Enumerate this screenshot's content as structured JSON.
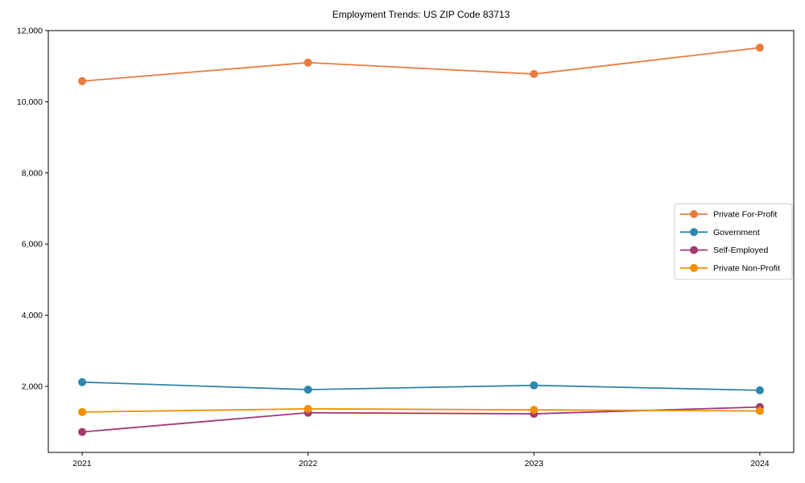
{
  "chart_data": {
    "type": "line",
    "title": "Employment Trends: US ZIP Code 83713",
    "x": [
      2021,
      2022,
      2023,
      2024
    ],
    "x_tick_labels": [
      "2021",
      "2022",
      "2023",
      "2024"
    ],
    "series": [
      {
        "name": "Private For-Profit",
        "color": "#E87D3E",
        "values": [
          10580,
          11100,
          10780,
          11520
        ]
      },
      {
        "name": "Government",
        "color": "#2E86AB",
        "values": [
          2120,
          1910,
          2030,
          1890
        ]
      },
      {
        "name": "Self-Employed",
        "color": "#A23B72",
        "values": [
          720,
          1260,
          1230,
          1420
        ]
      },
      {
        "name": "Private Non-Profit",
        "color": "#F18F01",
        "values": [
          1280,
          1370,
          1340,
          1310
        ]
      }
    ],
    "yticks": [
      2000,
      4000,
      6000,
      8000,
      10000,
      12000
    ],
    "ytick_labels": [
      "2,000",
      "4,000",
      "6,000",
      "8,000",
      "10,000",
      "12,000"
    ],
    "ylim": [
      145,
      12000
    ],
    "xlim": [
      2020.85,
      2024.15
    ],
    "xlabel": "",
    "ylabel": "",
    "grid": false,
    "legend_position": "right-middle",
    "frame_color": "#000000",
    "background_color": "#ffffff",
    "legend_border_color": "#cccccc"
  }
}
